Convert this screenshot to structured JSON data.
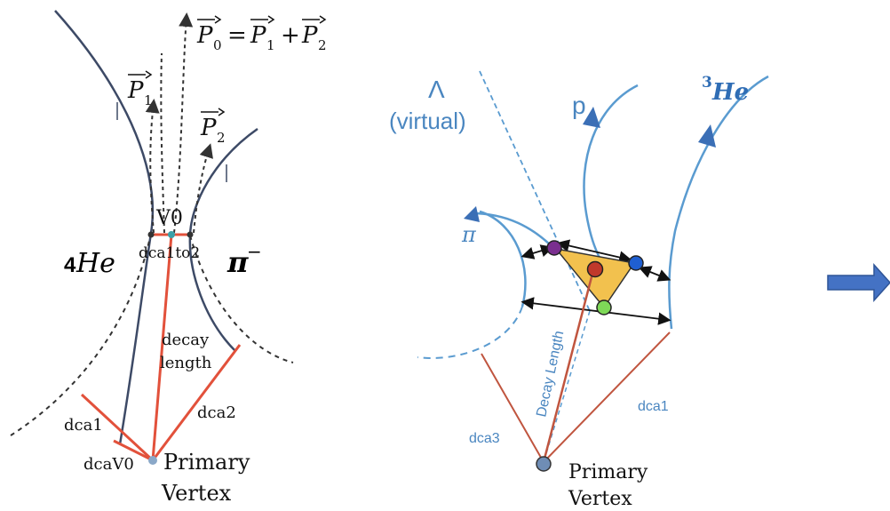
{
  "left_panel": {
    "labels": {
      "p0_equation": "P0 = P1 + P2",
      "p0_main": "P",
      "p0_sub": "0",
      "p0_eq": "=",
      "p1_main": "P",
      "p1_sub": "1",
      "plus": "+",
      "p2_main": "P",
      "p2_sub": "2",
      "v0": "V0",
      "helium4_digit": "4",
      "helium4_text": "He",
      "pion_minus": "π",
      "pion_minus_sup": "−",
      "dca_1to2": "dca1to2",
      "decay_length_line1": "decay",
      "decay_length_line2": "length",
      "dca1": "dca1",
      "dca2": "dca2",
      "dca_v0": "dcaV0",
      "primary_line1": "Primary",
      "primary_line2": "Vertex"
    },
    "colors": {
      "track": "#3d4a66",
      "dashed": "#333333",
      "dca": "#e2513b",
      "v0_dot": "#3aa0a8",
      "pv_dot": "#8aa8c8"
    }
  },
  "right_panel": {
    "labels": {
      "lambda_symbol": "Λ",
      "lambda_virtual": "(virtual)",
      "proton": "p",
      "helium3_sup": "3",
      "helium3_text": "He",
      "pion": "π",
      "decay_length": "Decay Length",
      "dca1": "dca1",
      "dca3": "dca3",
      "primary_line1": "Primary",
      "primary_line2": "Vertex"
    },
    "colors": {
      "track": "#5a9bd0",
      "dca": "#c0553f",
      "triangle_fill": "#f2c14e",
      "dot_purple": "#7a2f8f",
      "dot_red": "#c0392b",
      "dot_blue": "#1f5fd1",
      "dot_green": "#7ed957",
      "pv_dot": "#6f8db5",
      "label_blue": "#4a86c0"
    }
  },
  "arrow": {
    "color": "#4472c4"
  }
}
